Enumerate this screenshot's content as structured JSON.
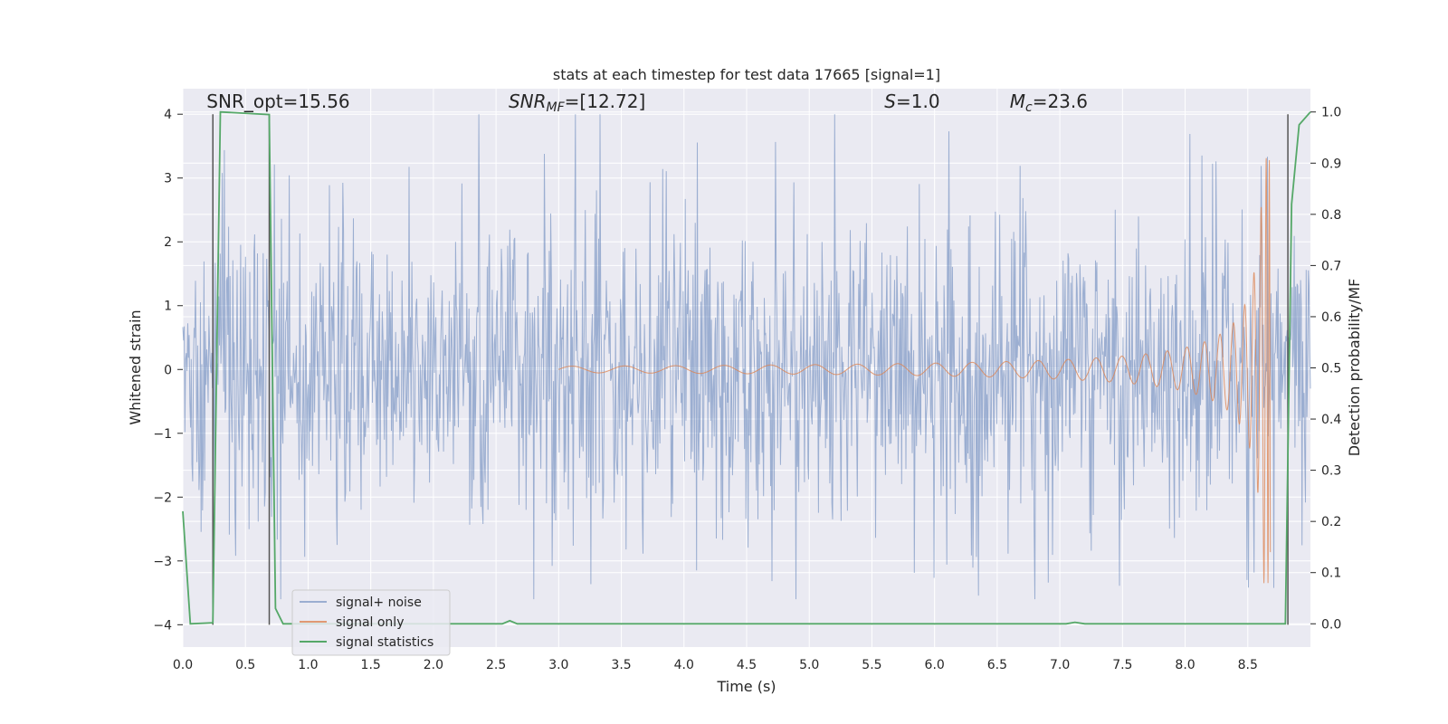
{
  "chart_data": {
    "type": "line",
    "title": "stats at each timestep for test data 17665 [signal=1]",
    "xlabel": "Time (s)",
    "ylabel": "Whitened strain",
    "ylabel_right": "Detection probability/MF",
    "xlim": [
      0.0,
      9.0
    ],
    "ylim": [
      -4.35,
      4.4
    ],
    "ylim_right": [
      -0.0455,
      1.0455
    ],
    "grid": true,
    "legend_position": "lower-left",
    "x_ticks": [
      "0.0",
      "0.5",
      "1.0",
      "1.5",
      "2.0",
      "2.5",
      "3.0",
      "3.5",
      "4.0",
      "4.5",
      "5.0",
      "5.5",
      "6.0",
      "6.5",
      "7.0",
      "7.5",
      "8.0",
      "8.5"
    ],
    "y_ticks": [
      "4",
      "3",
      "2",
      "1",
      "0",
      "−1",
      "−2",
      "−3",
      "−4"
    ],
    "y_ticks_right": [
      "1.0",
      "0.9",
      "0.8",
      "0.7",
      "0.6",
      "0.5",
      "0.4",
      "0.3",
      "0.2",
      "0.1",
      "0.0"
    ],
    "annotations": [
      {
        "text": "SNR_opt=15.56",
        "x": 0.19,
        "y": 4.1
      },
      {
        "text": "SNR_MF=[12.72]",
        "x": 2.6,
        "y": 4.1
      },
      {
        "text": "S=1.0",
        "x": 5.6,
        "y": 4.1
      },
      {
        "text": "M_c=23.6",
        "x": 6.6,
        "y": 4.1
      }
    ],
    "vertical_lines_x": [
      0.24,
      0.69,
      8.82
    ],
    "series": [
      {
        "name": "signal+ noise",
        "color": "#4c72b0",
        "opacity": 0.5,
        "kind": "noise",
        "x_range": [
          0.0,
          9.0
        ],
        "typical_envelope": [
          -1.7,
          1.7
        ],
        "peak_range": [
          -3.6,
          4.0
        ]
      },
      {
        "name": "signal only",
        "color": "#dd8452",
        "kind": "chirp",
        "x_range": [
          3.0,
          8.68
        ],
        "merger_time": 8.65,
        "peak_amplitude": 3.35
      },
      {
        "name": "signal statistics",
        "color": "#55a868",
        "axis": "right",
        "x": [
          0.0,
          0.06,
          0.24,
          0.3,
          0.69,
          0.74,
          0.8,
          2.55,
          2.61,
          2.67,
          5.0,
          7.05,
          7.12,
          7.2,
          8.8,
          8.85,
          8.91,
          9.0
        ],
        "y": [
          0.22,
          0.0,
          0.002,
          1.0,
          0.995,
          0.03,
          0.0,
          0.0,
          0.006,
          0.0,
          0.0,
          0.0,
          0.003,
          0.0,
          0.0,
          0.82,
          0.975,
          1.0
        ]
      }
    ]
  }
}
